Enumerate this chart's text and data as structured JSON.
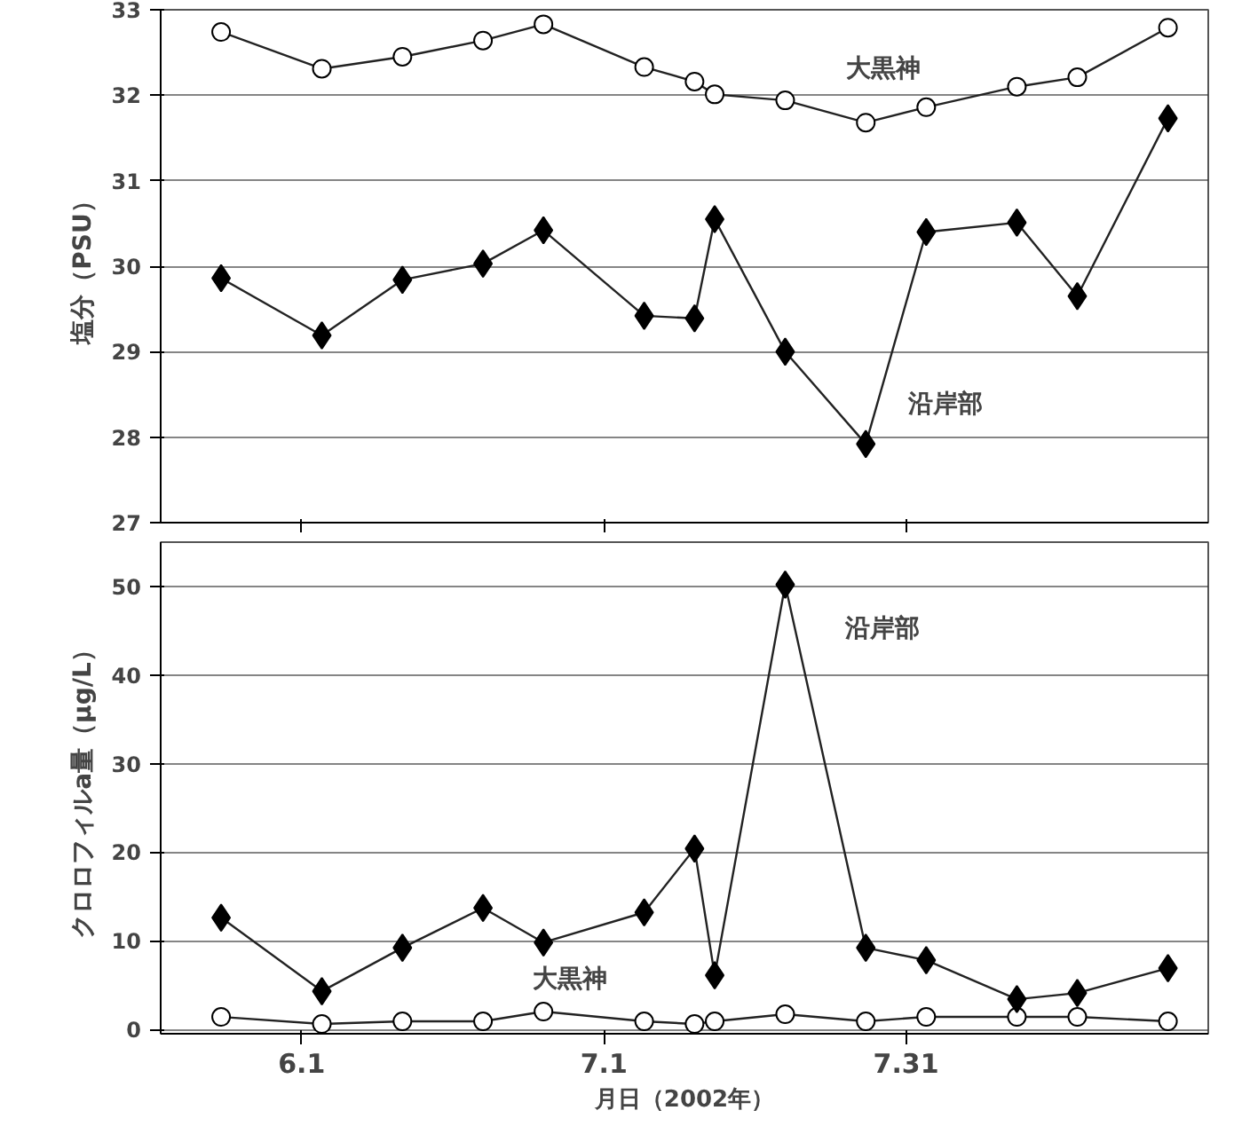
{
  "chart_data": [
    {
      "type": "line",
      "ylabel": "塩分（PSU）",
      "xlim": [
        "2002-05-18",
        "2002-08-30"
      ],
      "xticks": [
        {
          "value": "2002-06-01",
          "label": null
        },
        {
          "value": "2002-07-01",
          "label": null
        },
        {
          "value": "2002-07-31",
          "label": null
        }
      ],
      "ylim": [
        27,
        33
      ],
      "yticks": [
        27,
        28,
        29,
        30,
        31,
        32,
        33
      ],
      "grid": "y",
      "tick_labels": "y",
      "line_style": "solid",
      "x": [
        "2002-05-24",
        "2002-06-03",
        "2002-06-11",
        "2002-06-19",
        "2002-06-25",
        "2002-07-05",
        "2002-07-10",
        "2002-07-12",
        "2002-07-19",
        "2002-07-27",
        "2002-08-02",
        "2002-08-11",
        "2002-08-17",
        "2002-08-26"
      ],
      "series": [
        {
          "name": "大黒神",
          "color": "#ffffff",
          "marker": "circle",
          "values": [
            32.74,
            32.31,
            32.45,
            32.64,
            32.83,
            32.33,
            32.16,
            32.01,
            31.94,
            31.68,
            31.86,
            32.1,
            32.21,
            32.79
          ]
        },
        {
          "name": "沿岸部",
          "color": "#000000",
          "marker": "diamond",
          "values": [
            29.86,
            29.19,
            29.84,
            30.03,
            30.42,
            29.42,
            29.39,
            30.55,
            29.0,
            27.92,
            30.4,
            30.51,
            29.65,
            31.73
          ]
        }
      ]
    },
    {
      "type": "line",
      "ylabel": "クロロフィルa量（μg/L）",
      "xlabel": "月日（2002年）",
      "xlim": [
        "2002-05-18",
        "2002-08-30"
      ],
      "xticks": [
        {
          "value": "2002-06-01",
          "label": "6.1"
        },
        {
          "value": "2002-07-01",
          "label": "7.1"
        },
        {
          "value": "2002-07-31",
          "label": "7.31"
        }
      ],
      "ylim": [
        -0.5,
        55
      ],
      "yticks": [
        0,
        10,
        20,
        30,
        40,
        50
      ],
      "grid": "y",
      "line_style": "solid",
      "x": [
        "2002-05-24",
        "2002-06-03",
        "2002-06-11",
        "2002-06-19",
        "2002-06-25",
        "2002-07-05",
        "2002-07-10",
        "2002-07-12",
        "2002-07-19",
        "2002-07-27",
        "2002-08-02",
        "2002-08-11",
        "2002-08-17",
        "2002-08-26"
      ],
      "series": [
        {
          "name": "大黒神",
          "color": "#ffffff",
          "marker": "circle",
          "values": [
            1.4,
            0.6,
            0.9,
            0.9,
            2.0,
            0.9,
            0.6,
            0.9,
            1.7,
            0.9,
            1.4,
            1.4,
            1.4,
            0.9
          ]
        },
        {
          "name": "沿岸部",
          "color": "#000000",
          "marker": "diamond",
          "values": [
            12.6,
            4.3,
            9.2,
            13.7,
            9.8,
            13.2,
            20.4,
            6.1,
            50.2,
            9.2,
            7.8,
            3.4,
            4.1,
            6.9
          ]
        }
      ]
    }
  ]
}
